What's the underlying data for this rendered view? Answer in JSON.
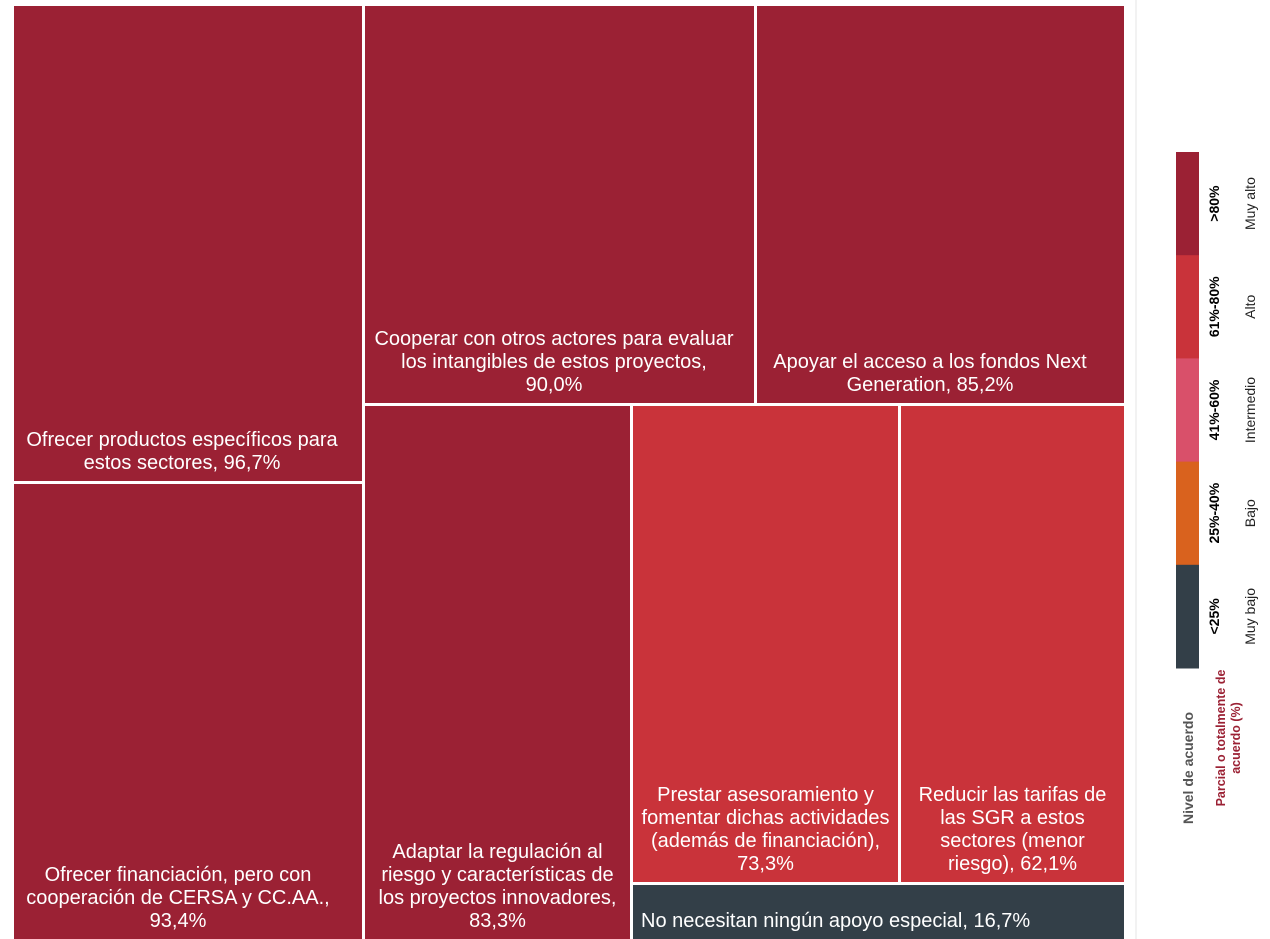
{
  "chart_data": {
    "type": "treemap",
    "labels": [
      "Ofrecer productos específicos para estos sectores, 96,7%",
      "Ofrecer financiación, pero con cooperación de CERSA y CC.AA., 93,4%",
      "Cooperar con otros actores para evaluar los intangibles de estos proyectos, 90,0%",
      "Apoyar el acceso a los fondos Next Generation, 85,2%",
      "Adaptar la regulación al riesgo y características de los proyectos innovadores, 83,3%",
      "Prestar asesoramiento y fomentar dichas actividades (además de financiación), 73,3%",
      "Reducir las tarifas de las SGR a estos sectores (menor riesgo), 62,1%",
      "No necesitan ningún apoyo especial, 16,7%"
    ],
    "values": [
      96.7,
      93.4,
      90.0,
      85.2,
      83.3,
      73.3,
      62.1,
      16.7
    ],
    "colors": [
      "#9b2134",
      "#9b2134",
      "#9b2134",
      "#9b2134",
      "#9b2134",
      "#c9333a",
      "#c9333a",
      "#333f48"
    ],
    "legend": {
      "title": "Nivel de acuerdo",
      "subtitle": "Parcial o totalmente de acuerdo (%)",
      "items": [
        {
          "range": ">80%",
          "name": "Muy alto",
          "color": "#9b2134"
        },
        {
          "range": "61%-80%",
          "name": "Alto",
          "color": "#c9333a"
        },
        {
          "range": "41%-60%",
          "name": "Intermedio",
          "color": "#d9506a"
        },
        {
          "range": "25%-40%",
          "name": "Bajo",
          "color": "#d9621e"
        },
        {
          "range": "<25%",
          "name": "Muy bajo",
          "color": "#333f48"
        }
      ]
    }
  }
}
